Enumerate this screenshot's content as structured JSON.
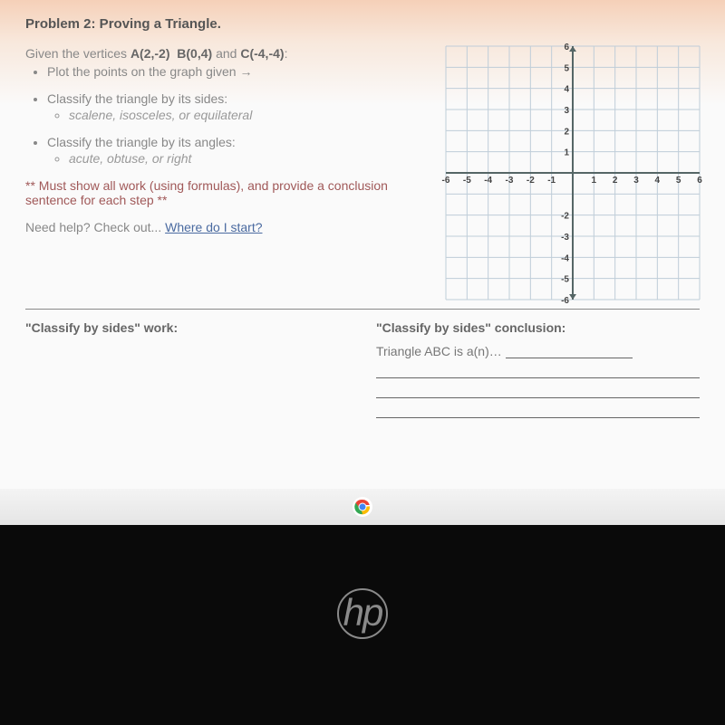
{
  "title": "Problem 2: Proving a Triangle.",
  "given_prefix": "Given the vertices ",
  "vertices": {
    "A": "A(2,-2)",
    "B": "B(0,4)",
    "C": "C(-4,-4)"
  },
  "given_suffix": ":",
  "bullets": {
    "plot": "Plot the points on the graph given  →",
    "sides": "Classify the triangle by its sides:",
    "sides_sub": "scalene, isosceles, or equilateral",
    "angles": "Classify the triangle by its angles:",
    "angles_sub": "acute, obtuse, or right"
  },
  "must": "** Must show all work (using formulas), and provide a conclusion sentence for each step **",
  "help_prefix": "Need help? Check out... ",
  "help_link": "Where do I start?",
  "work": {
    "sides_head": "\"Classify by sides\" work:",
    "concl_head": "\"Classify by sides\" conclusion:",
    "concl_text": "Triangle ABC is a(n)…"
  },
  "grid": {
    "xmin": -6,
    "xmax": 6,
    "ymin": -6,
    "ymax": 6,
    "xticks": [
      -6,
      -5,
      -4,
      -3,
      -2,
      -1,
      1,
      2,
      3,
      4,
      5,
      6
    ],
    "yticks": [
      -6,
      -5,
      -4,
      -3,
      -2,
      1,
      2,
      3,
      4,
      5,
      6
    ],
    "cell_color": "#bfcdd8",
    "axis_color": "#556666"
  },
  "logo": "hp"
}
